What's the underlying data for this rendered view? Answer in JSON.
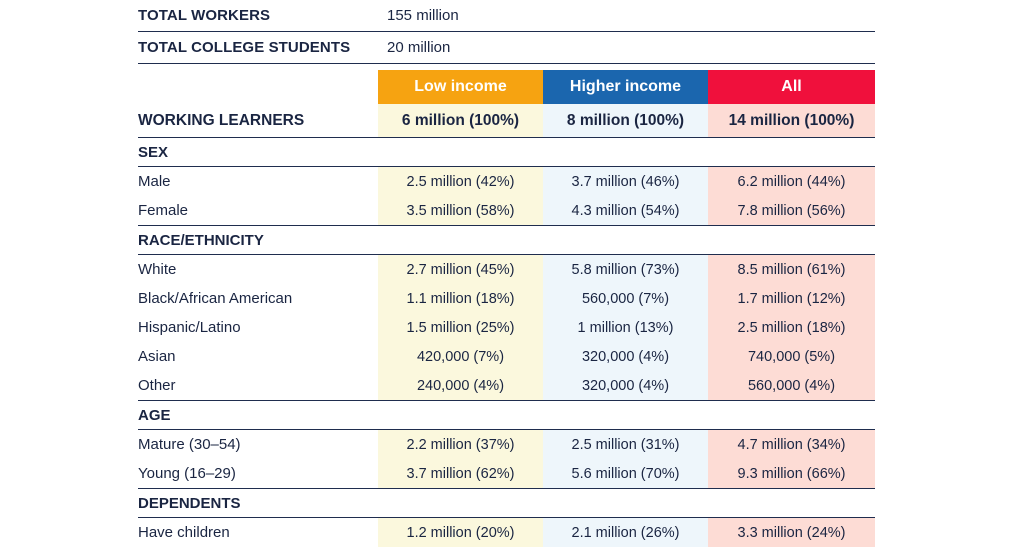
{
  "summary": [
    {
      "label": "TOTAL WORKERS",
      "value": "155 million"
    },
    {
      "label": "TOTAL COLLEGE STUDENTS",
      "value": "20 million"
    }
  ],
  "columns": {
    "low": "Low income",
    "high": "Higher income",
    "all": "All"
  },
  "colors": {
    "low": "#f6a311",
    "high": "#1b66ae",
    "all": "#f0103c"
  },
  "working_learners": {
    "label": "WORKING LEARNERS",
    "low": "6 million (100%)",
    "high": "8 million (100%)",
    "all": "14 million (100%)"
  },
  "sections": [
    {
      "title": "SEX",
      "rows": [
        {
          "label": "Male",
          "low": "2.5 million (42%)",
          "high": "3.7 million (46%)",
          "all": "6.2 million (44%)"
        },
        {
          "label": "Female",
          "low": "3.5 million (58%)",
          "high": "4.3 million (54%)",
          "all": "7.8 million (56%)"
        }
      ]
    },
    {
      "title": "RACE/ETHNICITY",
      "rows": [
        {
          "label": "White",
          "low": "2.7 million (45%)",
          "high": "5.8 million (73%)",
          "all": "8.5 million (61%)"
        },
        {
          "label": "Black/African American",
          "low": "1.1 million (18%)",
          "high": "560,000 (7%)",
          "all": "1.7 million (12%)"
        },
        {
          "label": "Hispanic/Latino",
          "low": "1.5 million (25%)",
          "high": "1 million (13%)",
          "all": "2.5 million (18%)"
        },
        {
          "label": "Asian",
          "low": "420,000 (7%)",
          "high": "320,000 (4%)",
          "all": "740,000 (5%)"
        },
        {
          "label": "Other",
          "low": "240,000 (4%)",
          "high": "320,000 (4%)",
          "all": "560,000 (4%)"
        }
      ]
    },
    {
      "title": "AGE",
      "rows": [
        {
          "label": "Mature (30–54)",
          "low": "2.2 million (37%)",
          "high": "2.5 million (31%)",
          "all": "4.7 million (34%)"
        },
        {
          "label": "Young (16–29)",
          "low": "3.7 million (62%)",
          "high": "5.6 million (70%)",
          "all": "9.3 million (66%)"
        }
      ]
    },
    {
      "title": "DEPENDENTS",
      "rows": [
        {
          "label": "Have children",
          "low": "1.2 million (20%)",
          "high": "2.1 million (26%)",
          "all": "3.3 million (24%)"
        }
      ]
    }
  ]
}
